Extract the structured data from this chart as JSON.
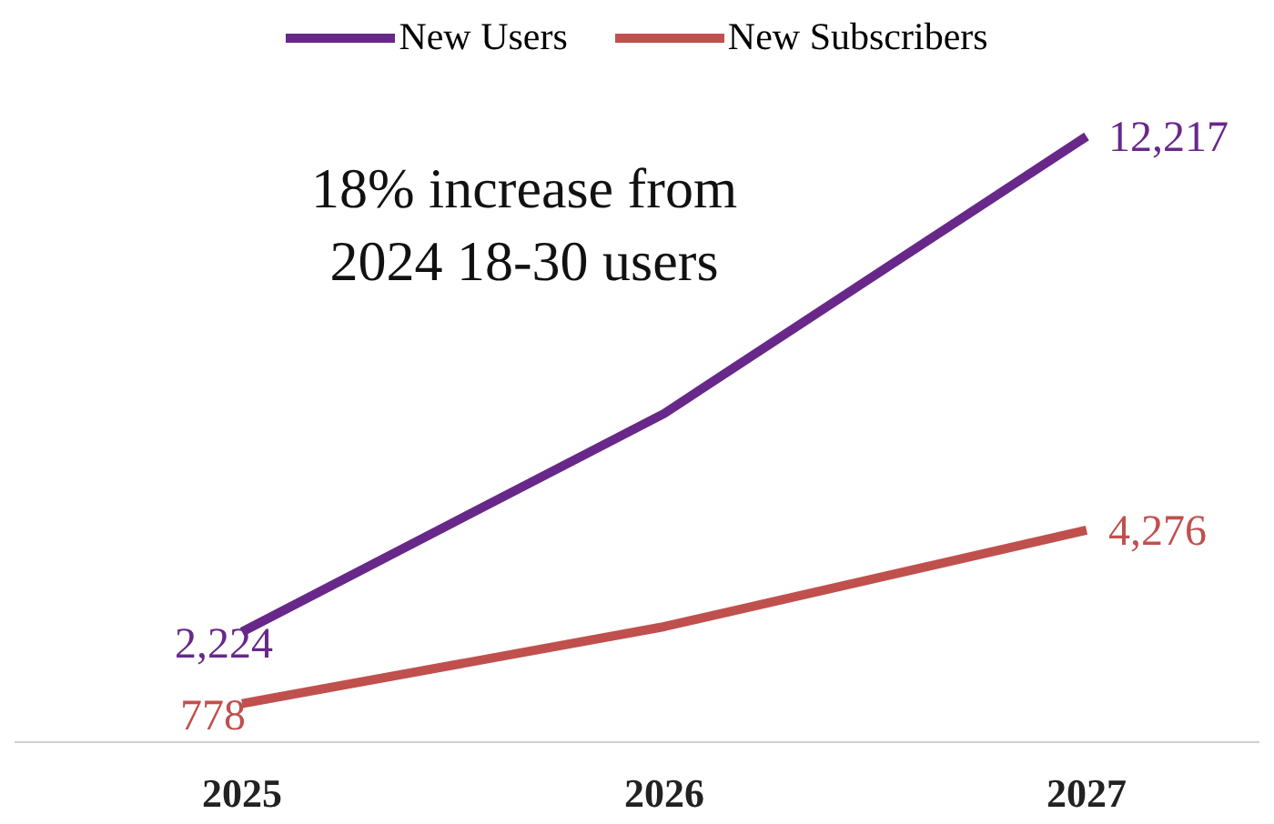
{
  "chart_data": {
    "type": "line",
    "categories": [
      "2025",
      "2026",
      "2027"
    ],
    "series": [
      {
        "name": "New Users",
        "color": "#68288a",
        "values": [
          2224,
          6630,
          12217
        ],
        "value_labels": [
          "2,224",
          null,
          "12,217"
        ]
      },
      {
        "name": "New Subscribers",
        "color": "#c0504d",
        "values": [
          778,
          2330,
          4276
        ],
        "value_labels": [
          "778",
          null,
          "4,276"
        ]
      }
    ],
    "annotations": [
      "18% increase from 2024 18-30 users"
    ],
    "legend": "top",
    "marker": "none",
    "line_style": "solid"
  }
}
